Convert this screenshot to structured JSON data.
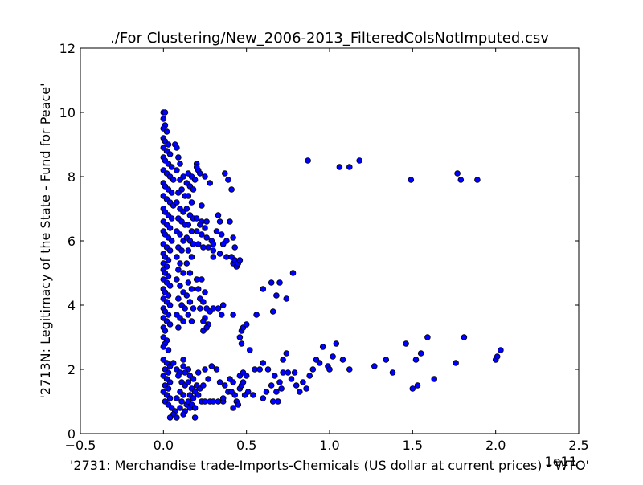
{
  "chart_data": {
    "type": "scatter",
    "title": "./For Clustering/New_2006-2013_FilteredColsNotImputed.csv",
    "xlabel": "'2731: Merchandise trade-Imports-Chemicals (US dollar at current prices) - WTO'",
    "ylabel": "'2713N: Legitimacy of the State - Fund for Peace'",
    "x_offset_label": "1e11",
    "xlim": [
      -0.5,
      2.5
    ],
    "ylim": [
      0,
      12
    ],
    "x_ticks": [
      -0.5,
      0.0,
      0.5,
      1.0,
      1.5,
      2.0,
      2.5
    ],
    "x_tick_labels": [
      "−0.5",
      "0.0",
      "0.5",
      "1.0",
      "1.5",
      "2.0",
      "2.5"
    ],
    "y_ticks": [
      0,
      2,
      4,
      6,
      8,
      10,
      12
    ],
    "y_tick_labels": [
      "0",
      "2",
      "4",
      "6",
      "8",
      "10",
      "12"
    ],
    "grid": false,
    "marker_color": "#0000ff",
    "marker_edge": "#000000",
    "points": [
      [
        0.0,
        10.0
      ],
      [
        0.01,
        10.0
      ],
      [
        0.0,
        9.8
      ],
      [
        0.01,
        9.6
      ],
      [
        0.0,
        9.5
      ],
      [
        0.02,
        9.4
      ],
      [
        0.0,
        9.2
      ],
      [
        0.01,
        9.1
      ],
      [
        0.03,
        9.0
      ],
      [
        0.0,
        8.9
      ],
      [
        0.02,
        8.8
      ],
      [
        0.04,
        8.7
      ],
      [
        0.0,
        8.6
      ],
      [
        0.01,
        8.5
      ],
      [
        0.03,
        8.4
      ],
      [
        0.05,
        8.3
      ],
      [
        0.0,
        8.2
      ],
      [
        0.02,
        8.1
      ],
      [
        0.04,
        8.0
      ],
      [
        0.06,
        7.9
      ],
      [
        0.0,
        7.8
      ],
      [
        0.01,
        7.7
      ],
      [
        0.03,
        7.6
      ],
      [
        0.05,
        7.5
      ],
      [
        0.0,
        7.4
      ],
      [
        0.02,
        7.3
      ],
      [
        0.04,
        7.2
      ],
      [
        0.06,
        7.1
      ],
      [
        0.0,
        7.0
      ],
      [
        0.01,
        6.9
      ],
      [
        0.03,
        6.8
      ],
      [
        0.05,
        6.7
      ],
      [
        0.0,
        6.6
      ],
      [
        0.02,
        6.5
      ],
      [
        0.04,
        6.4
      ],
      [
        0.0,
        6.3
      ],
      [
        0.01,
        6.2
      ],
      [
        0.03,
        6.1
      ],
      [
        0.05,
        6.0
      ],
      [
        0.0,
        5.9
      ],
      [
        0.02,
        5.8
      ],
      [
        0.04,
        5.7
      ],
      [
        0.0,
        5.6
      ],
      [
        0.01,
        5.5
      ],
      [
        0.03,
        5.4
      ],
      [
        0.0,
        5.3
      ],
      [
        0.02,
        5.2
      ],
      [
        0.0,
        5.1
      ],
      [
        0.01,
        5.0
      ],
      [
        0.03,
        4.9
      ],
      [
        0.0,
        4.8
      ],
      [
        0.02,
        4.7
      ],
      [
        0.04,
        4.6
      ],
      [
        0.0,
        4.5
      ],
      [
        0.01,
        4.4
      ],
      [
        0.03,
        4.3
      ],
      [
        0.0,
        4.2
      ],
      [
        0.02,
        4.1
      ],
      [
        0.04,
        4.0
      ],
      [
        0.0,
        3.9
      ],
      [
        0.01,
        3.8
      ],
      [
        0.03,
        3.7
      ],
      [
        0.0,
        3.6
      ],
      [
        0.02,
        3.5
      ],
      [
        0.04,
        3.4
      ],
      [
        0.0,
        3.3
      ],
      [
        0.01,
        3.2
      ],
      [
        0.0,
        3.0
      ],
      [
        0.02,
        2.9
      ],
      [
        0.01,
        2.8
      ],
      [
        0.0,
        2.7
      ],
      [
        0.03,
        2.6
      ],
      [
        0.07,
        9.0
      ],
      [
        0.08,
        8.9
      ],
      [
        0.09,
        8.6
      ],
      [
        0.1,
        8.4
      ],
      [
        0.08,
        8.2
      ],
      [
        0.12,
        8.0
      ],
      [
        0.1,
        7.9
      ],
      [
        0.14,
        7.8
      ],
      [
        0.11,
        7.6
      ],
      [
        0.09,
        7.5
      ],
      [
        0.13,
        7.4
      ],
      [
        0.08,
        7.2
      ],
      [
        0.1,
        7.0
      ],
      [
        0.12,
        6.9
      ],
      [
        0.09,
        6.7
      ],
      [
        0.11,
        6.6
      ],
      [
        0.13,
        6.5
      ],
      [
        0.08,
        6.3
      ],
      [
        0.1,
        6.2
      ],
      [
        0.12,
        6.0
      ],
      [
        0.09,
        5.8
      ],
      [
        0.11,
        5.7
      ],
      [
        0.08,
        5.5
      ],
      [
        0.1,
        5.3
      ],
      [
        0.09,
        5.1
      ],
      [
        0.12,
        5.0
      ],
      [
        0.08,
        4.8
      ],
      [
        0.1,
        4.6
      ],
      [
        0.12,
        4.4
      ],
      [
        0.09,
        4.2
      ],
      [
        0.11,
        4.0
      ],
      [
        0.13,
        3.9
      ],
      [
        0.08,
        3.7
      ],
      [
        0.1,
        3.6
      ],
      [
        0.12,
        3.5
      ],
      [
        0.09,
        3.3
      ],
      [
        0.15,
        8.1
      ],
      [
        0.17,
        8.0
      ],
      [
        0.19,
        7.9
      ],
      [
        0.2,
        8.4
      ],
      [
        0.21,
        8.2
      ],
      [
        0.16,
        7.7
      ],
      [
        0.18,
        7.6
      ],
      [
        0.15,
        7.4
      ],
      [
        0.17,
        7.2
      ],
      [
        0.14,
        7.0
      ],
      [
        0.16,
        6.8
      ],
      [
        0.18,
        6.7
      ],
      [
        0.15,
        6.5
      ],
      [
        0.17,
        6.3
      ],
      [
        0.14,
        6.1
      ],
      [
        0.16,
        6.0
      ],
      [
        0.18,
        5.9
      ],
      [
        0.15,
        5.7
      ],
      [
        0.17,
        5.5
      ],
      [
        0.14,
        5.3
      ],
      [
        0.16,
        5.0
      ],
      [
        0.15,
        4.7
      ],
      [
        0.17,
        4.5
      ],
      [
        0.14,
        4.3
      ],
      [
        0.16,
        4.1
      ],
      [
        0.18,
        3.9
      ],
      [
        0.15,
        3.7
      ],
      [
        0.17,
        3.5
      ],
      [
        0.2,
        8.3
      ],
      [
        0.22,
        8.1
      ],
      [
        0.25,
        8.0
      ],
      [
        0.28,
        7.8
      ],
      [
        0.23,
        7.1
      ],
      [
        0.2,
        6.7
      ],
      [
        0.23,
        6.6
      ],
      [
        0.26,
        6.6
      ],
      [
        0.22,
        6.5
      ],
      [
        0.25,
        6.4
      ],
      [
        0.2,
        6.3
      ],
      [
        0.23,
        6.2
      ],
      [
        0.26,
        6.1
      ],
      [
        0.29,
        6.0
      ],
      [
        0.21,
        5.9
      ],
      [
        0.24,
        5.8
      ],
      [
        0.27,
        5.8
      ],
      [
        0.3,
        5.9
      ],
      [
        0.2,
        4.8
      ],
      [
        0.23,
        4.8
      ],
      [
        0.21,
        4.5
      ],
      [
        0.25,
        4.4
      ],
      [
        0.22,
        4.2
      ],
      [
        0.24,
        4.1
      ],
      [
        0.22,
        3.9
      ],
      [
        0.26,
        3.9
      ],
      [
        0.28,
        3.8
      ],
      [
        0.25,
        3.6
      ],
      [
        0.24,
        3.5
      ],
      [
        0.27,
        3.4
      ],
      [
        0.24,
        3.2
      ],
      [
        0.26,
        3.3
      ],
      [
        0.33,
        6.8
      ],
      [
        0.34,
        6.6
      ],
      [
        0.4,
        6.6
      ],
      [
        0.32,
        6.3
      ],
      [
        0.35,
        6.2
      ],
      [
        0.38,
        6.0
      ],
      [
        0.42,
        6.1
      ],
      [
        0.36,
        5.9
      ],
      [
        0.3,
        5.7
      ],
      [
        0.34,
        5.6
      ],
      [
        0.38,
        5.5
      ],
      [
        0.41,
        5.5
      ],
      [
        0.42,
        5.3
      ],
      [
        0.43,
        5.4
      ],
      [
        0.44,
        5.2
      ],
      [
        0.45,
        5.3
      ],
      [
        0.46,
        5.4
      ],
      [
        0.43,
        5.8
      ],
      [
        0.3,
        5.5
      ],
      [
        0.37,
        8.1
      ],
      [
        0.39,
        7.9
      ],
      [
        0.41,
        7.6
      ],
      [
        0.36,
        4.0
      ],
      [
        0.33,
        3.9
      ],
      [
        0.3,
        3.9
      ],
      [
        0.35,
        3.7
      ],
      [
        0.42,
        3.7
      ],
      [
        0.47,
        3.2
      ],
      [
        0.48,
        3.3
      ],
      [
        0.5,
        3.4
      ],
      [
        0.46,
        3.0
      ],
      [
        0.47,
        2.8
      ],
      [
        0.52,
        2.6
      ],
      [
        0.56,
        3.7
      ],
      [
        0.6,
        4.5
      ],
      [
        0.65,
        4.7
      ],
      [
        0.7,
        4.7
      ],
      [
        0.68,
        4.3
      ],
      [
        0.74,
        4.2
      ],
      [
        0.66,
        3.8
      ],
      [
        0.78,
        5.0
      ],
      [
        0.87,
        8.5
      ],
      [
        1.06,
        8.3
      ],
      [
        1.12,
        8.3
      ],
      [
        1.18,
        8.5
      ],
      [
        1.49,
        7.9
      ],
      [
        1.77,
        8.1
      ],
      [
        1.79,
        7.9
      ],
      [
        1.89,
        7.9
      ],
      [
        0.0,
        2.3
      ],
      [
        0.02,
        2.2
      ],
      [
        0.04,
        2.1
      ],
      [
        0.01,
        2.0
      ],
      [
        0.03,
        1.9
      ],
      [
        0.0,
        1.8
      ],
      [
        0.02,
        1.7
      ],
      [
        0.04,
        1.6
      ],
      [
        0.01,
        1.5
      ],
      [
        0.03,
        1.4
      ],
      [
        0.0,
        1.3
      ],
      [
        0.02,
        1.2
      ],
      [
        0.04,
        1.1
      ],
      [
        0.01,
        1.0
      ],
      [
        0.03,
        0.9
      ],
      [
        0.05,
        0.8
      ],
      [
        0.07,
        0.7
      ],
      [
        0.06,
        0.6
      ],
      [
        0.04,
        0.5
      ],
      [
        0.08,
        0.5
      ],
      [
        0.06,
        2.2
      ],
      [
        0.08,
        2.0
      ],
      [
        0.1,
        1.9
      ],
      [
        0.12,
        2.1
      ],
      [
        0.09,
        1.8
      ],
      [
        0.11,
        1.6
      ],
      [
        0.13,
        1.5
      ],
      [
        0.1,
        1.3
      ],
      [
        0.12,
        1.2
      ],
      [
        0.08,
        1.1
      ],
      [
        0.11,
        1.0
      ],
      [
        0.14,
        0.9
      ],
      [
        0.1,
        0.8
      ],
      [
        0.13,
        0.7
      ],
      [
        0.16,
        0.8
      ],
      [
        0.12,
        0.6
      ],
      [
        0.19,
        0.5
      ],
      [
        0.12,
        2.3
      ],
      [
        0.15,
        2.0
      ],
      [
        0.13,
        1.9
      ],
      [
        0.16,
        1.8
      ],
      [
        0.18,
        1.7
      ],
      [
        0.15,
        1.6
      ],
      [
        0.17,
        1.4
      ],
      [
        0.19,
        1.3
      ],
      [
        0.16,
        1.2
      ],
      [
        0.18,
        1.1
      ],
      [
        0.15,
        1.0
      ],
      [
        0.17,
        0.9
      ],
      [
        0.19,
        0.8
      ],
      [
        0.2,
        1.5
      ],
      [
        0.22,
        1.4
      ],
      [
        0.21,
        1.2
      ],
      [
        0.23,
        1.0
      ],
      [
        0.25,
        1.0
      ],
      [
        0.28,
        1.0
      ],
      [
        0.3,
        1.0
      ],
      [
        0.24,
        1.5
      ],
      [
        0.27,
        1.7
      ],
      [
        0.21,
        1.9
      ],
      [
        0.25,
        2.0
      ],
      [
        0.29,
        2.1
      ],
      [
        0.32,
        2.0
      ],
      [
        0.33,
        1.0
      ],
      [
        0.36,
        1.0
      ],
      [
        0.34,
        1.6
      ],
      [
        0.37,
        1.5
      ],
      [
        0.39,
        1.3
      ],
      [
        0.36,
        1.1
      ],
      [
        0.4,
        1.7
      ],
      [
        0.42,
        1.6
      ],
      [
        0.41,
        1.3
      ],
      [
        0.43,
        1.2
      ],
      [
        0.44,
        1.0
      ],
      [
        0.42,
        0.8
      ],
      [
        0.45,
        0.9
      ],
      [
        0.46,
        1.4
      ],
      [
        0.47,
        1.5
      ],
      [
        0.48,
        1.6
      ],
      [
        0.46,
        1.8
      ],
      [
        0.48,
        1.9
      ],
      [
        0.5,
        1.8
      ],
      [
        0.49,
        1.2
      ],
      [
        0.51,
        1.3
      ],
      [
        0.54,
        1.2
      ],
      [
        0.55,
        2.0
      ],
      [
        0.58,
        2.0
      ],
      [
        0.6,
        1.1
      ],
      [
        0.62,
        1.3
      ],
      [
        0.6,
        2.2
      ],
      [
        0.63,
        2.0
      ],
      [
        0.65,
        1.5
      ],
      [
        0.66,
        1.0
      ],
      [
        0.68,
        1.3
      ],
      [
        0.67,
        1.8
      ],
      [
        0.69,
        1.0
      ],
      [
        0.72,
        1.9
      ],
      [
        0.7,
        1.6
      ],
      [
        0.72,
        2.3
      ],
      [
        0.71,
        1.4
      ],
      [
        0.74,
        2.5
      ],
      [
        0.75,
        1.9
      ],
      [
        0.77,
        1.7
      ],
      [
        0.8,
        1.5
      ],
      [
        0.82,
        1.3
      ],
      [
        0.79,
        1.9
      ],
      [
        0.84,
        1.6
      ],
      [
        0.86,
        1.4
      ],
      [
        0.88,
        1.8
      ],
      [
        0.9,
        2.0
      ],
      [
        0.92,
        2.3
      ],
      [
        0.94,
        2.2
      ],
      [
        0.96,
        2.7
      ],
      [
        0.99,
        2.1
      ],
      [
        1.0,
        2.0
      ],
      [
        1.02,
        2.4
      ],
      [
        1.04,
        2.8
      ],
      [
        1.08,
        2.3
      ],
      [
        1.12,
        2.0
      ],
      [
        1.27,
        2.1
      ],
      [
        1.34,
        2.3
      ],
      [
        1.38,
        1.9
      ],
      [
        1.46,
        2.8
      ],
      [
        1.5,
        1.4
      ],
      [
        1.52,
        2.3
      ],
      [
        1.53,
        1.5
      ],
      [
        1.55,
        2.5
      ],
      [
        1.59,
        3.0
      ],
      [
        1.63,
        1.7
      ],
      [
        1.76,
        2.2
      ],
      [
        1.81,
        3.0
      ],
      [
        2.0,
        2.3
      ],
      [
        2.01,
        2.4
      ],
      [
        2.03,
        2.6
      ]
    ]
  }
}
